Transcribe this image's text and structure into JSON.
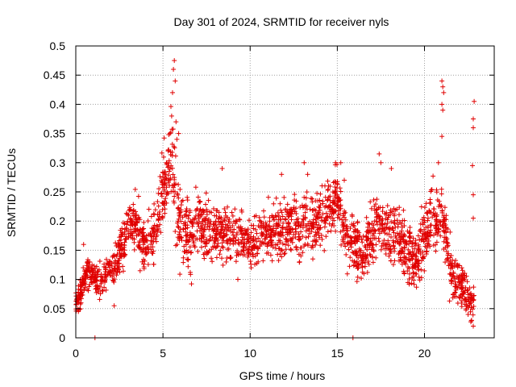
{
  "chart_data": {
    "type": "scatter",
    "title": "Day 301 of 2024, SRMTID for receiver nyls",
    "xlabel": "GPS time / hours",
    "ylabel": "SRMTID / TECUs",
    "xlim": [
      0,
      24
    ],
    "ylim": [
      0,
      0.5
    ],
    "grid": true,
    "marker": "+",
    "marker_color": "#e00000",
    "x_ticks": [
      0,
      5,
      10,
      15,
      20
    ],
    "x_tick_labels": [
      "0",
      "5",
      "10",
      "15",
      "20"
    ],
    "y_ticks": [
      0,
      0.05,
      0.1,
      0.15,
      0.2,
      0.25,
      0.3,
      0.35,
      0.4,
      0.45,
      0.5
    ],
    "y_tick_labels": [
      "0",
      "0.05",
      "0.1",
      "0.15",
      "0.2",
      "0.25",
      "0.3",
      "0.35",
      "0.4",
      "0.45",
      "0.5"
    ],
    "trend": [
      [
        0.0,
        0.06,
        0.012
      ],
      [
        0.3,
        0.08,
        0.02
      ],
      [
        0.6,
        0.11,
        0.02
      ],
      [
        1.0,
        0.11,
        0.015
      ],
      [
        1.3,
        0.09,
        0.02
      ],
      [
        1.7,
        0.11,
        0.02
      ],
      [
        2.2,
        0.12,
        0.025
      ],
      [
        2.7,
        0.16,
        0.03
      ],
      [
        3.0,
        0.2,
        0.025
      ],
      [
        3.5,
        0.19,
        0.035
      ],
      [
        4.0,
        0.15,
        0.04
      ],
      [
        4.5,
        0.18,
        0.035
      ],
      [
        5.0,
        0.25,
        0.04
      ],
      [
        5.5,
        0.3,
        0.06
      ],
      [
        6.0,
        0.2,
        0.05
      ],
      [
        6.5,
        0.17,
        0.045
      ],
      [
        7.0,
        0.2,
        0.04
      ],
      [
        7.5,
        0.18,
        0.04
      ],
      [
        8.0,
        0.18,
        0.04
      ],
      [
        9.0,
        0.18,
        0.035
      ],
      [
        10.0,
        0.16,
        0.035
      ],
      [
        11.0,
        0.18,
        0.035
      ],
      [
        12.0,
        0.19,
        0.04
      ],
      [
        13.0,
        0.19,
        0.04
      ],
      [
        14.0,
        0.2,
        0.04
      ],
      [
        14.5,
        0.22,
        0.04
      ],
      [
        15.0,
        0.24,
        0.04
      ],
      [
        15.5,
        0.17,
        0.04
      ],
      [
        16.0,
        0.16,
        0.035
      ],
      [
        16.5,
        0.14,
        0.035
      ],
      [
        17.0,
        0.18,
        0.04
      ],
      [
        17.5,
        0.2,
        0.04
      ],
      [
        18.0,
        0.18,
        0.04
      ],
      [
        19.0,
        0.15,
        0.04
      ],
      [
        19.5,
        0.13,
        0.035
      ],
      [
        20.0,
        0.17,
        0.04
      ],
      [
        20.5,
        0.2,
        0.04
      ],
      [
        21.0,
        0.21,
        0.04
      ],
      [
        21.5,
        0.12,
        0.03
      ],
      [
        22.0,
        0.09,
        0.03
      ],
      [
        22.5,
        0.07,
        0.03
      ],
      [
        22.85,
        0.06,
        0.025
      ]
    ],
    "highlight_points": [
      [
        0.1,
        0.05
      ],
      [
        0.15,
        0.045
      ],
      [
        0.3,
        0.06
      ],
      [
        0.45,
        0.16
      ],
      [
        0.8,
        0.13
      ],
      [
        1.1,
        0.0
      ],
      [
        15.9,
        0.0
      ],
      [
        2.2,
        0.055
      ],
      [
        3.1,
        0.22
      ],
      [
        5.4,
        0.35
      ],
      [
        5.5,
        0.38
      ],
      [
        5.55,
        0.42
      ],
      [
        5.6,
        0.46
      ],
      [
        5.65,
        0.475
      ],
      [
        5.7,
        0.44
      ],
      [
        5.75,
        0.37
      ],
      [
        5.8,
        0.34
      ],
      [
        5.9,
        0.35
      ],
      [
        5.3,
        0.32
      ],
      [
        5.2,
        0.3
      ],
      [
        8.4,
        0.29
      ],
      [
        11.8,
        0.28
      ],
      [
        13.1,
        0.3
      ],
      [
        13.3,
        0.28
      ],
      [
        14.9,
        0.3
      ],
      [
        15.2,
        0.3
      ],
      [
        15.4,
        0.27
      ],
      [
        17.4,
        0.315
      ],
      [
        17.5,
        0.3
      ],
      [
        18.1,
        0.29
      ],
      [
        20.8,
        0.3
      ],
      [
        21.0,
        0.44
      ],
      [
        21.05,
        0.43
      ],
      [
        21.1,
        0.42
      ],
      [
        21.0,
        0.4
      ],
      [
        21.05,
        0.39
      ],
      [
        21.0,
        0.345
      ],
      [
        22.85,
        0.405
      ],
      [
        22.8,
        0.375
      ],
      [
        22.8,
        0.36
      ],
      [
        22.75,
        0.295
      ],
      [
        22.8,
        0.245
      ],
      [
        22.8,
        0.205
      ],
      [
        22.5,
        0.04
      ],
      [
        22.7,
        0.03
      ],
      [
        22.8,
        0.02
      ],
      [
        22.4,
        0.05
      ]
    ],
    "n_points": 2300,
    "seed": 301
  }
}
